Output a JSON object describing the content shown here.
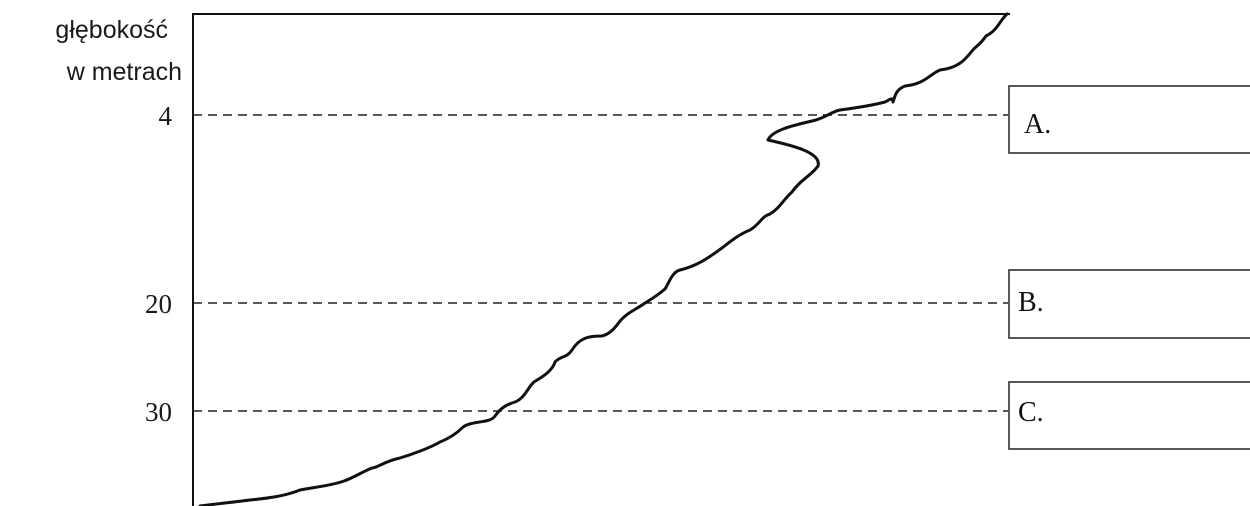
{
  "y_axis": {
    "label_line1": "głębokość",
    "label_line2": "w metrach"
  },
  "levels": [
    {
      "value": "4",
      "box_label": "A."
    },
    {
      "value": "20",
      "box_label": "B."
    },
    {
      "value": "30",
      "box_label": "C."
    }
  ]
}
